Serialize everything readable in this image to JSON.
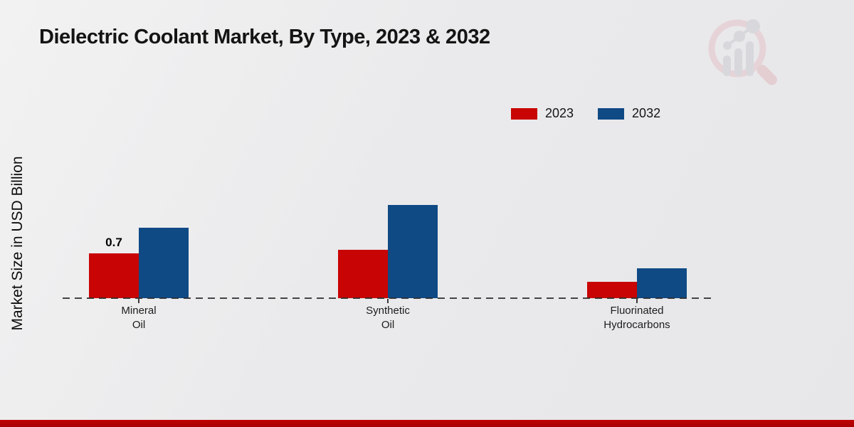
{
  "chart_data": {
    "type": "bar",
    "title": "Dielectric Coolant Market, By Type, 2023 & 2032",
    "ylabel": "Market Size in USD Billion",
    "categories": [
      "Mineral Oil",
      "Synthetic Oil",
      "Fluorinated Hydrocarbons"
    ],
    "category_labels_two_line": [
      [
        "Mineral",
        "Oil"
      ],
      [
        "Synthetic",
        "Oil"
      ],
      [
        "Fluorinated",
        "Hydrocarbons"
      ]
    ],
    "series": [
      {
        "name": "2023",
        "color": "#c80404",
        "values": [
          0.7,
          0.75,
          0.25
        ]
      },
      {
        "name": "2032",
        "color": "#104a85",
        "values": [
          1.1,
          1.45,
          0.47
        ]
      }
    ],
    "data_labels": [
      {
        "series": "2023",
        "category": "Mineral Oil",
        "text": "0.7"
      }
    ],
    "ylim": [
      0,
      1.6
    ],
    "grid": false,
    "baseline_style": "dashed",
    "legend_position": "top-right",
    "footer_band_color": "#b30000",
    "watermark": "market-research-future-logo"
  }
}
